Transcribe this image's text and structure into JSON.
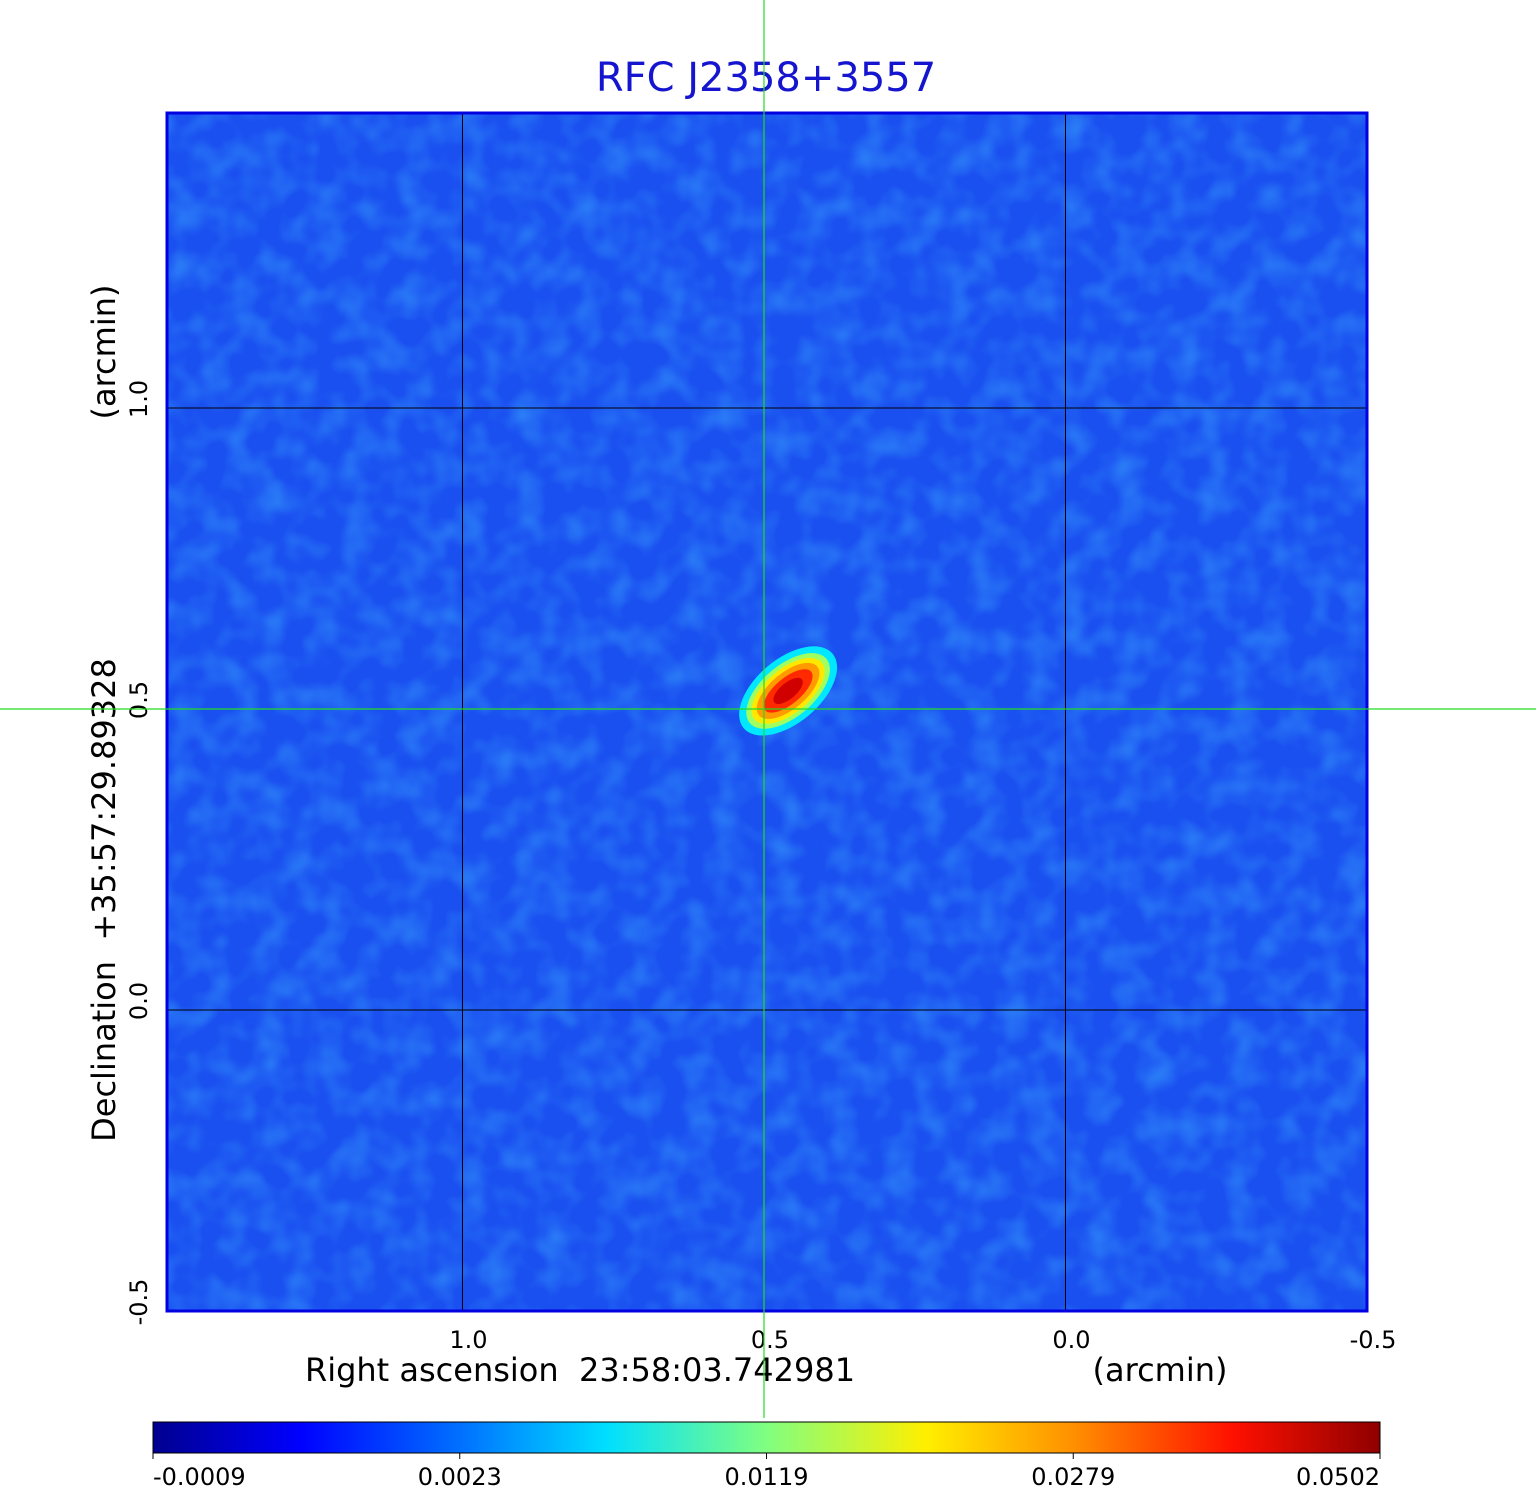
{
  "chart_data": {
    "type": "image",
    "title": "RFC J2358+3557",
    "x_label": "Right ascension  23:58:03.742981",
    "x_unit": "(arcmin)",
    "y_label": "Declination  +35:57:29.89328",
    "y_unit": "(arcmin)",
    "xlim": [
      1.49,
      -0.5
    ],
    "ylim": [
      -0.5,
      1.49
    ],
    "xticks": [
      {
        "value": 1,
        "label": "1.0"
      },
      0.5,
      {
        "value": 0,
        "label": "0.0"
      },
      -0.5
    ],
    "yticks": [
      -0.5,
      {
        "value": 0,
        "label": "0.0"
      },
      0.5,
      {
        "value": 1,
        "label": "1.0"
      }
    ],
    "grid": true,
    "crosshair": {
      "x": 0.5,
      "y": 0.5,
      "color": "#22dd22"
    },
    "source": {
      "x": 0.46,
      "y": 0.53,
      "peak": 0.0502
    },
    "colormap": "jet",
    "colorbar_ticks": [
      -0.0009,
      0.0023,
      0.0119,
      0.0279,
      0.0502
    ]
  }
}
